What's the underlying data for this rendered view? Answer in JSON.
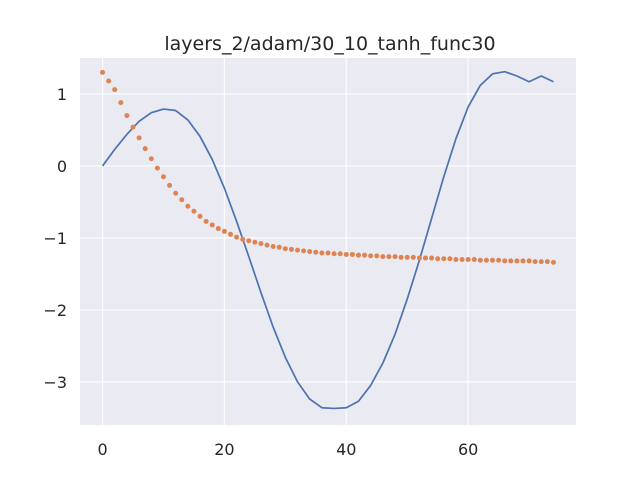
{
  "chart_data": {
    "type": "line",
    "title": "layers_2/adam/30_10_tanh_func30",
    "xlabel": "",
    "ylabel": "",
    "xlim": [
      -3.7,
      77.7
    ],
    "ylim": [
      -3.6,
      1.5
    ],
    "xticks": [
      0,
      20,
      40,
      60
    ],
    "yticks": [
      1,
      0,
      -1,
      -2,
      -3
    ],
    "ytick_labels": [
      "1",
      "0",
      "−1",
      "−2",
      "−3"
    ],
    "grid": true,
    "colors": {
      "background": "#eaeaf2",
      "grid": "#ffffff",
      "series_line": "#4c72b0",
      "series_dots": "#dd8452"
    },
    "series": [
      {
        "style": "line",
        "x": [
          0,
          2,
          4,
          6,
          8,
          10,
          12,
          14,
          16,
          18,
          20,
          22,
          24,
          26,
          28,
          30,
          32,
          34,
          36,
          38,
          40,
          42,
          44,
          46,
          48,
          50,
          52,
          54,
          56,
          58,
          60,
          62,
          64,
          66,
          68,
          70,
          72,
          74
        ],
        "y": [
          0.0,
          0.23,
          0.44,
          0.62,
          0.74,
          0.79,
          0.77,
          0.64,
          0.41,
          0.09,
          -0.31,
          -0.77,
          -1.26,
          -1.76,
          -2.24,
          -2.66,
          -3.0,
          -3.24,
          -3.36,
          -3.37,
          -3.36,
          -3.27,
          -3.05,
          -2.74,
          -2.34,
          -1.85,
          -1.31,
          -0.73,
          -0.15,
          0.38,
          0.82,
          1.12,
          1.28,
          1.31,
          1.25,
          1.17,
          1.25,
          1.17
        ]
      },
      {
        "style": "dots",
        "x": [
          0,
          1,
          2,
          3,
          4,
          5,
          6,
          7,
          8,
          9,
          10,
          11,
          12,
          13,
          14,
          15,
          16,
          17,
          18,
          19,
          20,
          21,
          22,
          23,
          24,
          25,
          26,
          27,
          28,
          29,
          30,
          31,
          32,
          33,
          34,
          35,
          36,
          37,
          38,
          39,
          40,
          41,
          42,
          43,
          44,
          45,
          46,
          47,
          48,
          49,
          50,
          51,
          52,
          53,
          54,
          55,
          56,
          57,
          58,
          59,
          60,
          61,
          62,
          63,
          64,
          65,
          66,
          67,
          68,
          69,
          70,
          71,
          72,
          73,
          74
        ],
        "y": [
          1.3,
          1.18,
          1.06,
          0.88,
          0.7,
          0.54,
          0.39,
          0.24,
          0.1,
          -0.03,
          -0.15,
          -0.27,
          -0.38,
          -0.47,
          -0.56,
          -0.63,
          -0.7,
          -0.77,
          -0.82,
          -0.87,
          -0.91,
          -0.95,
          -0.99,
          -1.02,
          -1.04,
          -1.06,
          -1.08,
          -1.1,
          -1.12,
          -1.13,
          -1.15,
          -1.16,
          -1.17,
          -1.18,
          -1.19,
          -1.2,
          -1.21,
          -1.21,
          -1.22,
          -1.22,
          -1.23,
          -1.23,
          -1.24,
          -1.24,
          -1.25,
          -1.25,
          -1.26,
          -1.26,
          -1.26,
          -1.27,
          -1.27,
          -1.27,
          -1.28,
          -1.28,
          -1.28,
          -1.29,
          -1.29,
          -1.29,
          -1.3,
          -1.3,
          -1.3,
          -1.3,
          -1.31,
          -1.31,
          -1.31,
          -1.31,
          -1.32,
          -1.32,
          -1.32,
          -1.32,
          -1.32,
          -1.33,
          -1.33,
          -1.33,
          -1.34
        ]
      }
    ]
  }
}
